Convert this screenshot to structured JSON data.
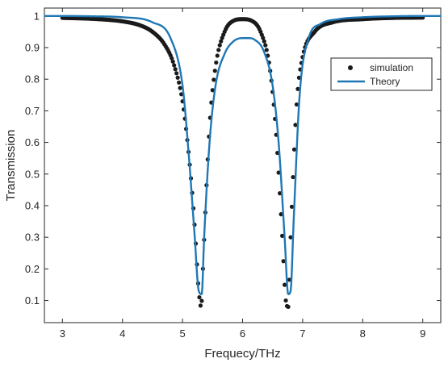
{
  "chart_data": {
    "type": "line",
    "xlabel": "Frequecy/THz",
    "ylabel": "Transmission",
    "xlim": [
      2.7,
      9.3
    ],
    "ylim": [
      0.03,
      1.025
    ],
    "xticks": [
      3,
      4,
      5,
      6,
      7,
      8,
      9
    ],
    "yticks": [
      0.1,
      0.2,
      0.3,
      0.4,
      0.5,
      0.6,
      0.7,
      0.8,
      0.9,
      1
    ],
    "xtick_labels": [
      "3",
      "4",
      "5",
      "6",
      "7",
      "8",
      "9"
    ],
    "ytick_labels": [
      "0.1",
      "0.2",
      "0.3",
      "0.4",
      "0.5",
      "0.6",
      "0.7",
      "0.8",
      "0.9",
      "1"
    ],
    "grid": false,
    "legend_position": "top-right",
    "series": [
      {
        "name": "simulation",
        "style": "markers",
        "color": "#1a1a1a",
        "x": [
          3.0,
          3.5,
          4.0,
          4.3,
          4.5,
          4.7,
          4.85,
          5.0,
          5.1,
          5.2,
          5.27,
          5.31,
          5.35,
          5.45,
          5.55,
          5.7,
          5.85,
          6.0,
          6.15,
          6.3,
          6.45,
          6.55,
          6.65,
          6.72,
          6.76,
          6.8,
          6.9,
          7.0,
          7.2,
          7.5,
          8.0,
          8.5,
          9.0
        ],
        "y": [
          0.994,
          0.991,
          0.983,
          0.97,
          0.95,
          0.91,
          0.85,
          0.73,
          0.57,
          0.34,
          0.13,
          0.08,
          0.25,
          0.65,
          0.84,
          0.95,
          0.985,
          0.99,
          0.985,
          0.95,
          0.84,
          0.65,
          0.34,
          0.1,
          0.08,
          0.3,
          0.72,
          0.87,
          0.95,
          0.98,
          0.99,
          0.994,
          0.995
        ]
      },
      {
        "name": "Theory",
        "style": "line",
        "color": "#1f77b4",
        "x": [
          2.7,
          3.0,
          3.5,
          4.0,
          4.5,
          4.8,
          5.0,
          5.1,
          5.2,
          5.27,
          5.32,
          5.36,
          5.45,
          5.55,
          5.7,
          5.85,
          6.0,
          6.1,
          6.2,
          6.35,
          6.5,
          6.6,
          6.7,
          6.76,
          6.8,
          6.85,
          6.95,
          7.1,
          7.3,
          7.6,
          8.0,
          8.5,
          9.0,
          9.3
        ],
        "y": [
          1.0,
          1.0,
          0.999,
          0.996,
          0.98,
          0.93,
          0.78,
          0.57,
          0.31,
          0.13,
          0.12,
          0.3,
          0.6,
          0.78,
          0.88,
          0.92,
          0.93,
          0.93,
          0.925,
          0.89,
          0.78,
          0.6,
          0.3,
          0.12,
          0.13,
          0.35,
          0.75,
          0.93,
          0.975,
          0.99,
          0.996,
          0.999,
          1.0,
          1.0
        ]
      }
    ]
  },
  "colors": {
    "axis": "#262626",
    "theory_line": "#1f77b4",
    "simulation_marker": "#1a1a1a"
  }
}
